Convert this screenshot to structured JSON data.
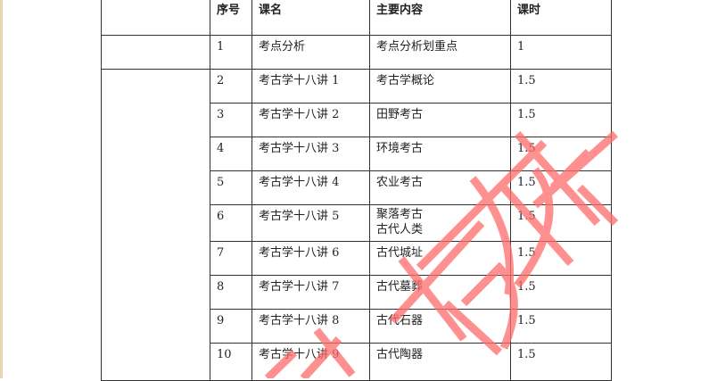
{
  "table": {
    "headers": [
      "序号",
      "课名",
      "主要内容",
      "课时"
    ],
    "rows": [
      {
        "no": "1",
        "course": "考点分析",
        "content": "考点分析划重点",
        "content2": "",
        "hours": "1"
      },
      {
        "no": "2",
        "course": "考古学十八讲 1",
        "content": "考古学概论",
        "content2": "",
        "hours": "1.5"
      },
      {
        "no": "3",
        "course": "考古学十八讲 2",
        "content": "田野考古",
        "content2": "",
        "hours": "1.5"
      },
      {
        "no": "4",
        "course": "考古学十八讲 3",
        "content": "环境考古",
        "content2": "",
        "hours": "1.5"
      },
      {
        "no": "5",
        "course": "考古学十八讲 4",
        "content": "农业考古",
        "content2": "",
        "hours": "1.5"
      },
      {
        "no": "6",
        "course": "考古学十八讲 5",
        "content": "聚落考古",
        "content2": "古代人类",
        "hours": "1.5"
      },
      {
        "no": "7",
        "course": "考古学十八讲 6",
        "content": "古代城址",
        "content2": "",
        "hours": "1.5"
      },
      {
        "no": "8",
        "course": "考古学十八讲 7",
        "content": "古代墓葬",
        "content2": "",
        "hours": "1.5"
      },
      {
        "no": "9",
        "course": "考古学十八讲 8",
        "content": "古代石器",
        "content2": "",
        "hours": "1.5"
      },
      {
        "no": "10",
        "course": "考古学十八讲 9",
        "content": "古代陶器",
        "content2": "",
        "hours": "1.5"
      }
    ]
  },
  "watermark": {
    "text": "考研",
    "color": "#ff6b6b"
  }
}
